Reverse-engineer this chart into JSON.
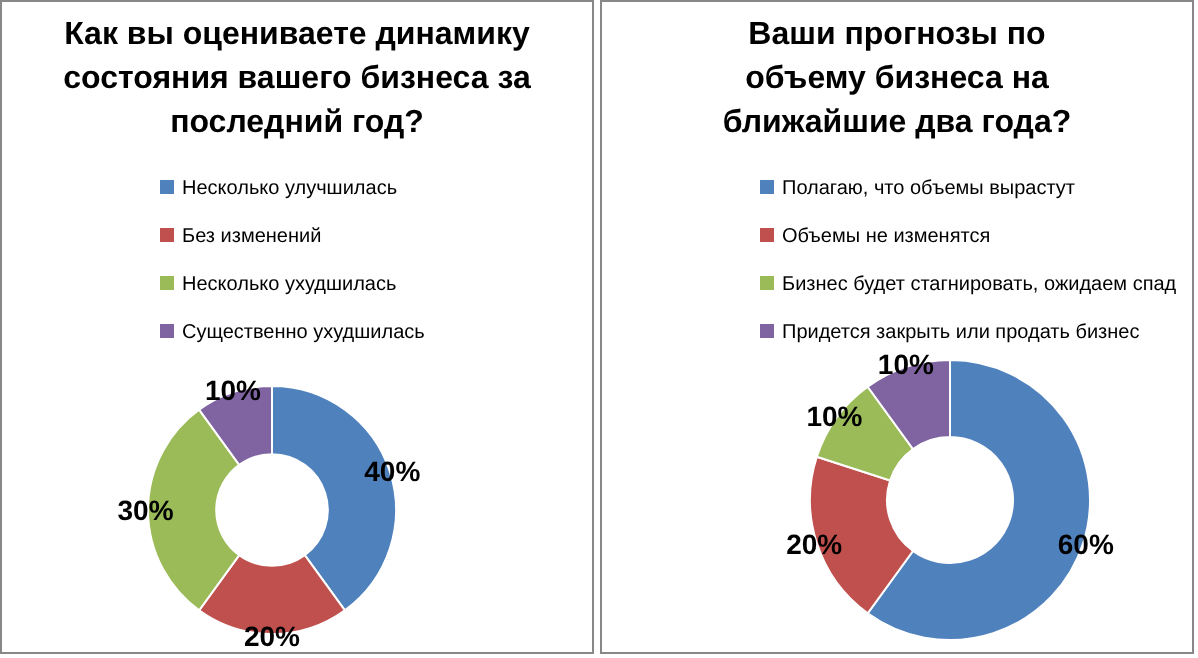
{
  "chart_data": [
    {
      "type": "donut",
      "title": "Как вы оцениваете динамику состояния вашего бизнеса за последний год?",
      "categories": [
        "Несколько улучшилась",
        "Без изменений",
        "Несколько ухудшилась",
        "Существенно ухудшилась"
      ],
      "values": [
        40,
        20,
        30,
        10
      ],
      "value_labels": [
        "40%",
        "20%",
        "30%",
        "10%"
      ],
      "colors": [
        "#4f81bd",
        "#c0504d",
        "#9bbb59",
        "#8064a2"
      ],
      "legend": "top right"
    },
    {
      "type": "donut",
      "title": "Ваши прогнозы по объему бизнеса на ближайшие два года?",
      "categories": [
        "Полагаю, что объемы вырастут",
        "Объемы не изменятся",
        "Бизнес будет стагнировать, ожидаем спад",
        "Придется закрыть или продать бизнес"
      ],
      "values": [
        60,
        20,
        10,
        10
      ],
      "value_labels": [
        "60%",
        "20%",
        "10%",
        "10%"
      ],
      "colors": [
        "#4f81bd",
        "#c0504d",
        "#9bbb59",
        "#8064a2"
      ],
      "legend": "top right"
    }
  ]
}
